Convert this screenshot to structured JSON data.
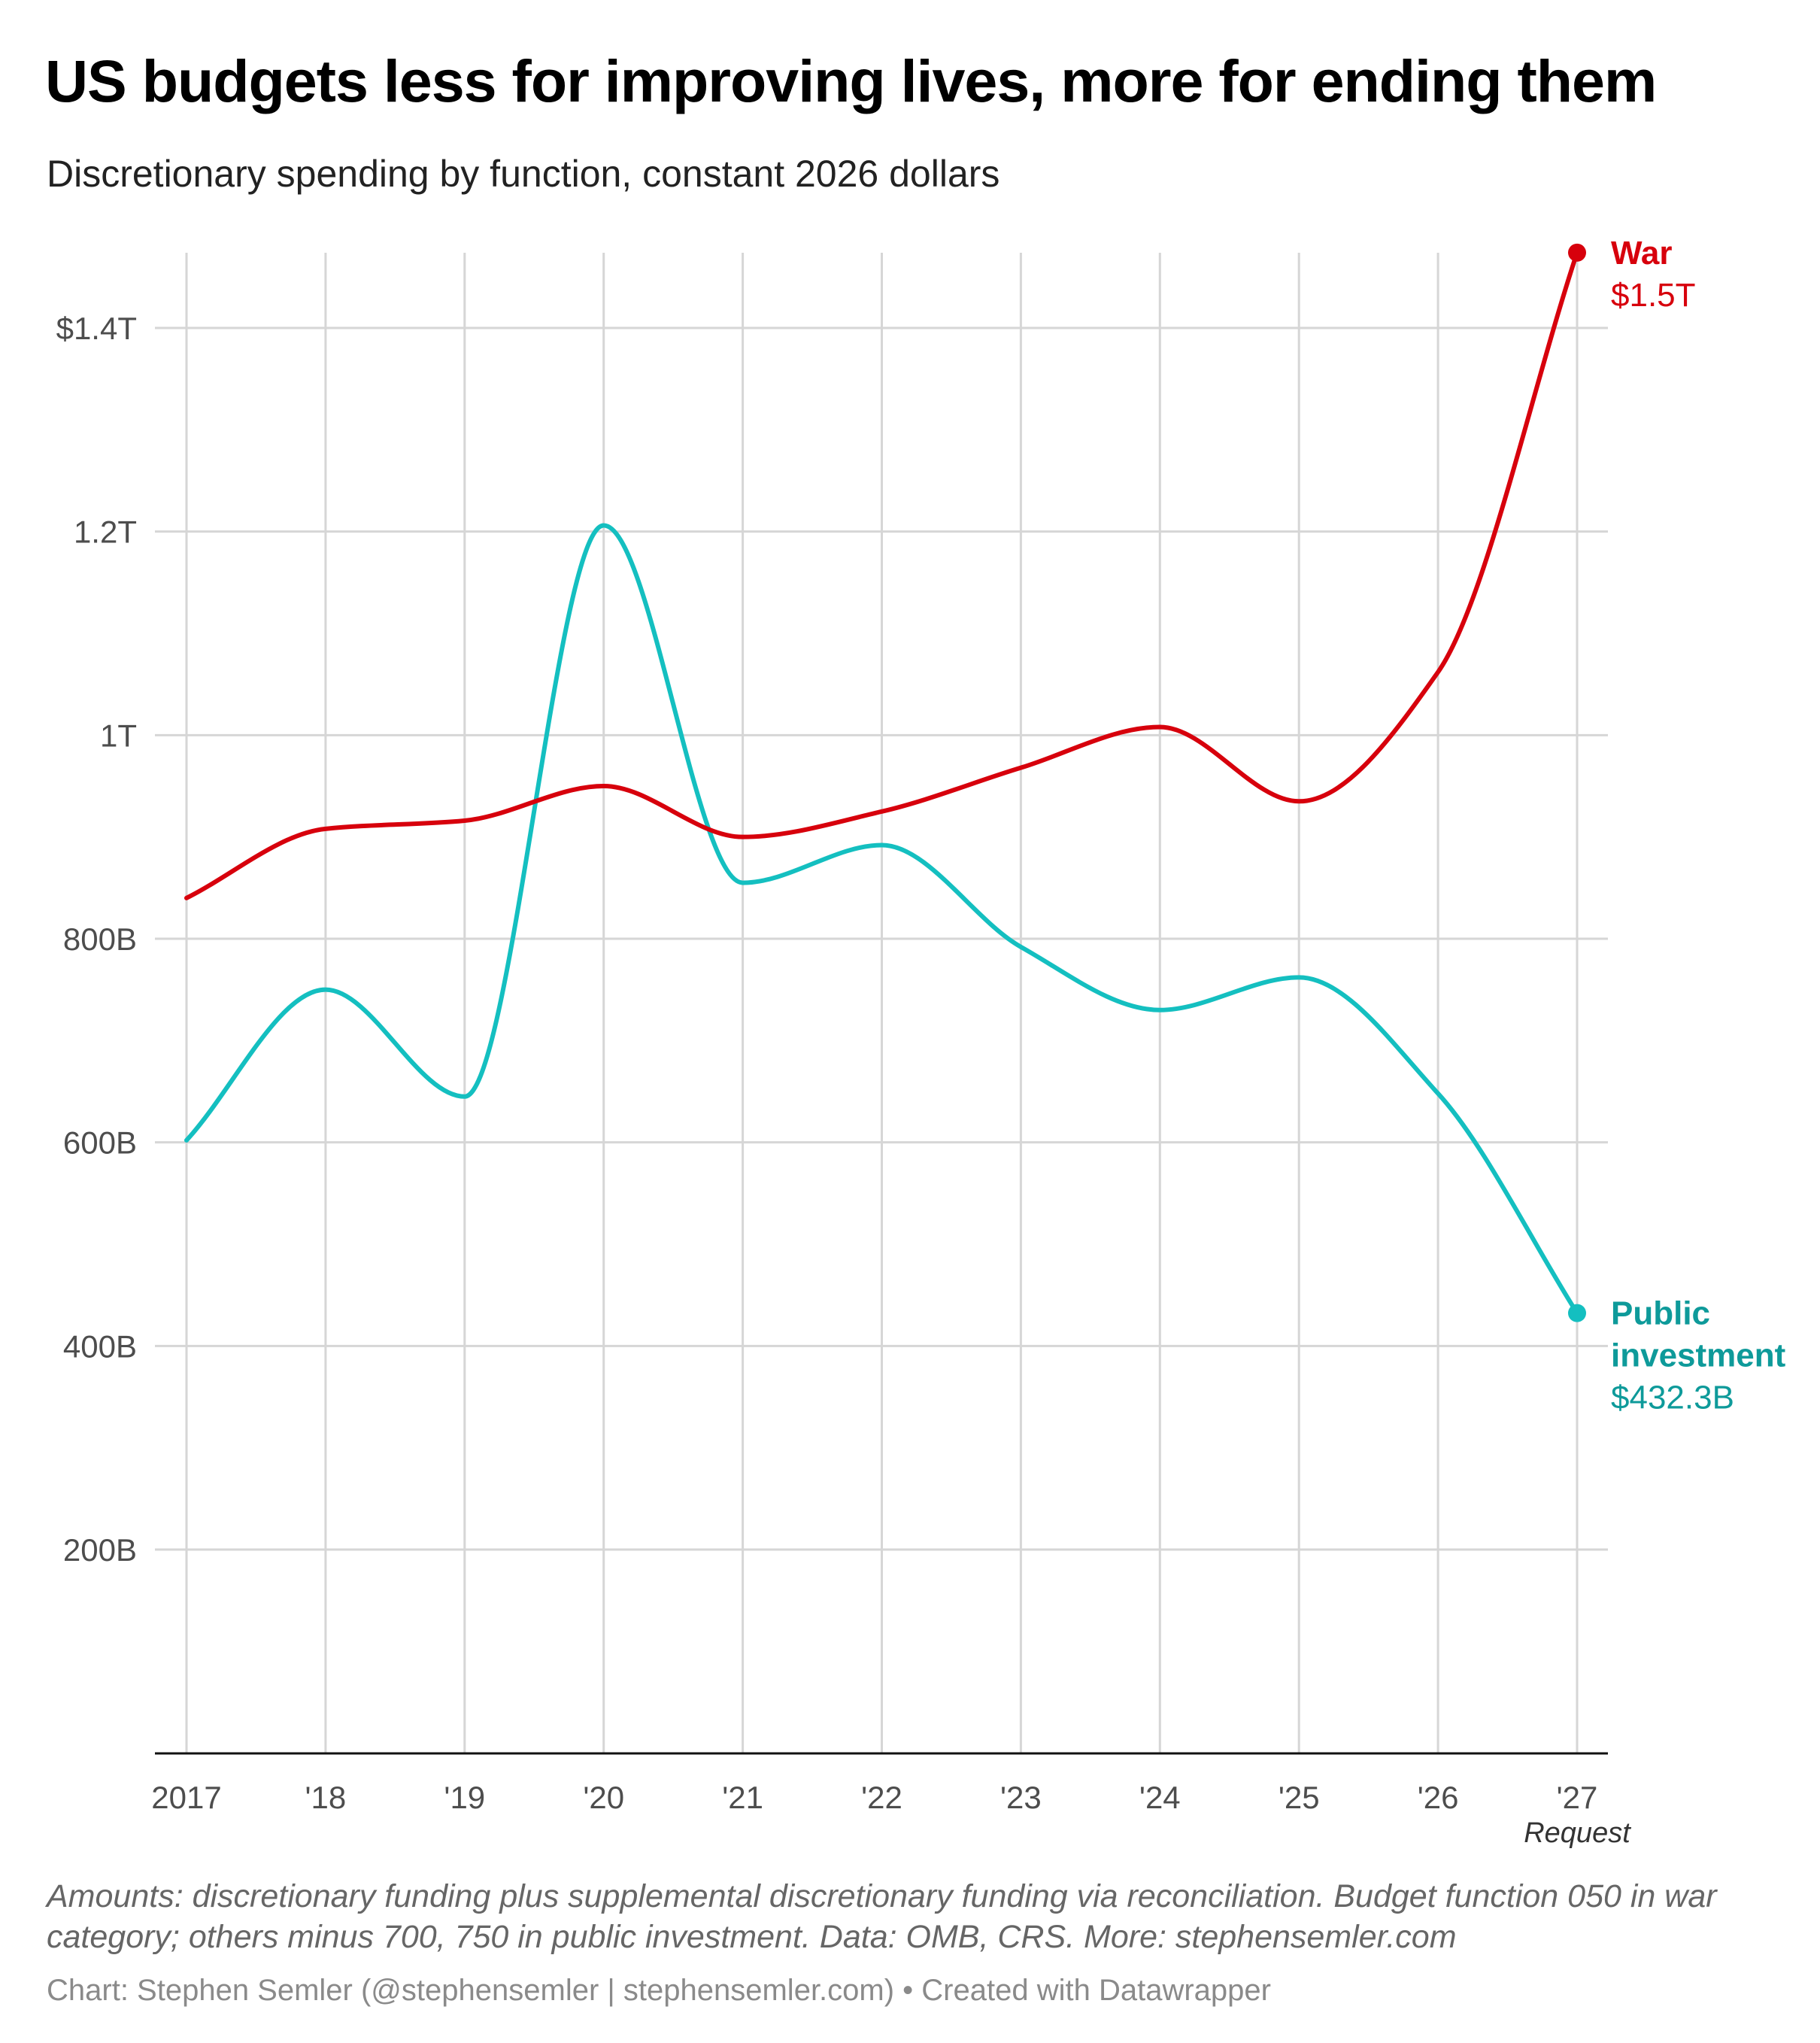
{
  "title": "US budgets less for improving lives, more for ending them",
  "subtitle": "Discretionary spending by function, constant 2026 dollars",
  "chart_data": {
    "type": "line",
    "x": [
      2017,
      2018,
      2019,
      2020,
      2021,
      2022,
      2023,
      2024,
      2025,
      2026,
      2027
    ],
    "x_tick_labels": [
      "2017",
      "'18",
      "'19",
      "'20",
      "'21",
      "'22",
      "'23",
      "'24",
      "'25",
      "'26",
      "'27"
    ],
    "x_note": "Request",
    "y_ticks": [
      200,
      400,
      600,
      800,
      1000,
      1200,
      1400
    ],
    "y_tick_labels": [
      "200B",
      "400B",
      "600B",
      "800B",
      "1T",
      "1.2T",
      "$1.4T"
    ],
    "ylim": [
      0,
      1500
    ],
    "y_unit": "billions of 2026 dollars",
    "grid": true,
    "series": [
      {
        "name": "War",
        "value_label": "$1.5T",
        "color": "#d7000c",
        "label_color": "#d7000c",
        "values": [
          840,
          908,
          916,
          950,
          900,
          925,
          968,
          1008,
          935,
          1062,
          1474
        ]
      },
      {
        "name": "Public investment",
        "name_lines": [
          "Public",
          "investment"
        ],
        "value_label": "$432.3B",
        "color": "#14bfc0",
        "label_color": "#0e9a9a",
        "values": [
          602,
          750,
          645,
          1206,
          855,
          892,
          792,
          730,
          762,
          648,
          432.3
        ]
      }
    ]
  },
  "notes": "Amounts: discretionary funding plus supplemental discretionary funding via reconciliation. Budget function 050 in war category; others minus 700, 750 in public investment. Data: OMB, CRS. More: stephensemler.com",
  "byline": "Chart: Stephen Semler (@stephensemler | stephensemler.com) • Created with Datawrapper"
}
